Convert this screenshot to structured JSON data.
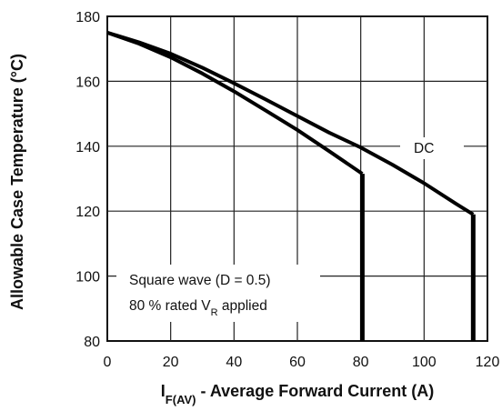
{
  "chart_data": {
    "type": "line",
    "xlabel": {
      "main": "I",
      "subscript": "F(AV)",
      "rest": " - Average Forward Current (A)"
    },
    "ylabel": "Allowable Case Temperature (°C)",
    "xlim": [
      0,
      120
    ],
    "ylim": [
      80,
      180
    ],
    "x_ticks": [
      0,
      20,
      40,
      60,
      80,
      100,
      120
    ],
    "y_ticks": [
      80,
      100,
      120,
      140,
      160,
      180
    ],
    "grid": true,
    "series": [
      {
        "name": "DC",
        "points": [
          [
            0,
            175
          ],
          [
            10,
            172
          ],
          [
            20,
            168.5
          ],
          [
            30,
            164.2
          ],
          [
            40,
            159.4
          ],
          [
            50,
            154.4
          ],
          [
            60,
            149.3
          ],
          [
            70,
            144.2
          ],
          [
            80,
            139.6
          ],
          [
            90,
            134.3
          ],
          [
            100,
            128.6
          ],
          [
            110,
            122.3
          ],
          [
            115.5,
            119
          ]
        ],
        "drop_to": 80
      },
      {
        "name": "Square wave (D = 0.5)",
        "points": [
          [
            0,
            175
          ],
          [
            10,
            171.6
          ],
          [
            20,
            167.4
          ],
          [
            30,
            162.4
          ],
          [
            40,
            156.9
          ],
          [
            50,
            151
          ],
          [
            60,
            145
          ],
          [
            70,
            138.5
          ],
          [
            80.5,
            131.5
          ]
        ],
        "drop_to": 80
      }
    ],
    "annotations": {
      "dc_label": "DC",
      "box_line1": "Square wave (D = 0.5)",
      "box_line2_main": "80 % rated V",
      "box_line2_sub": "R",
      "box_line2_rest": " applied"
    }
  }
}
